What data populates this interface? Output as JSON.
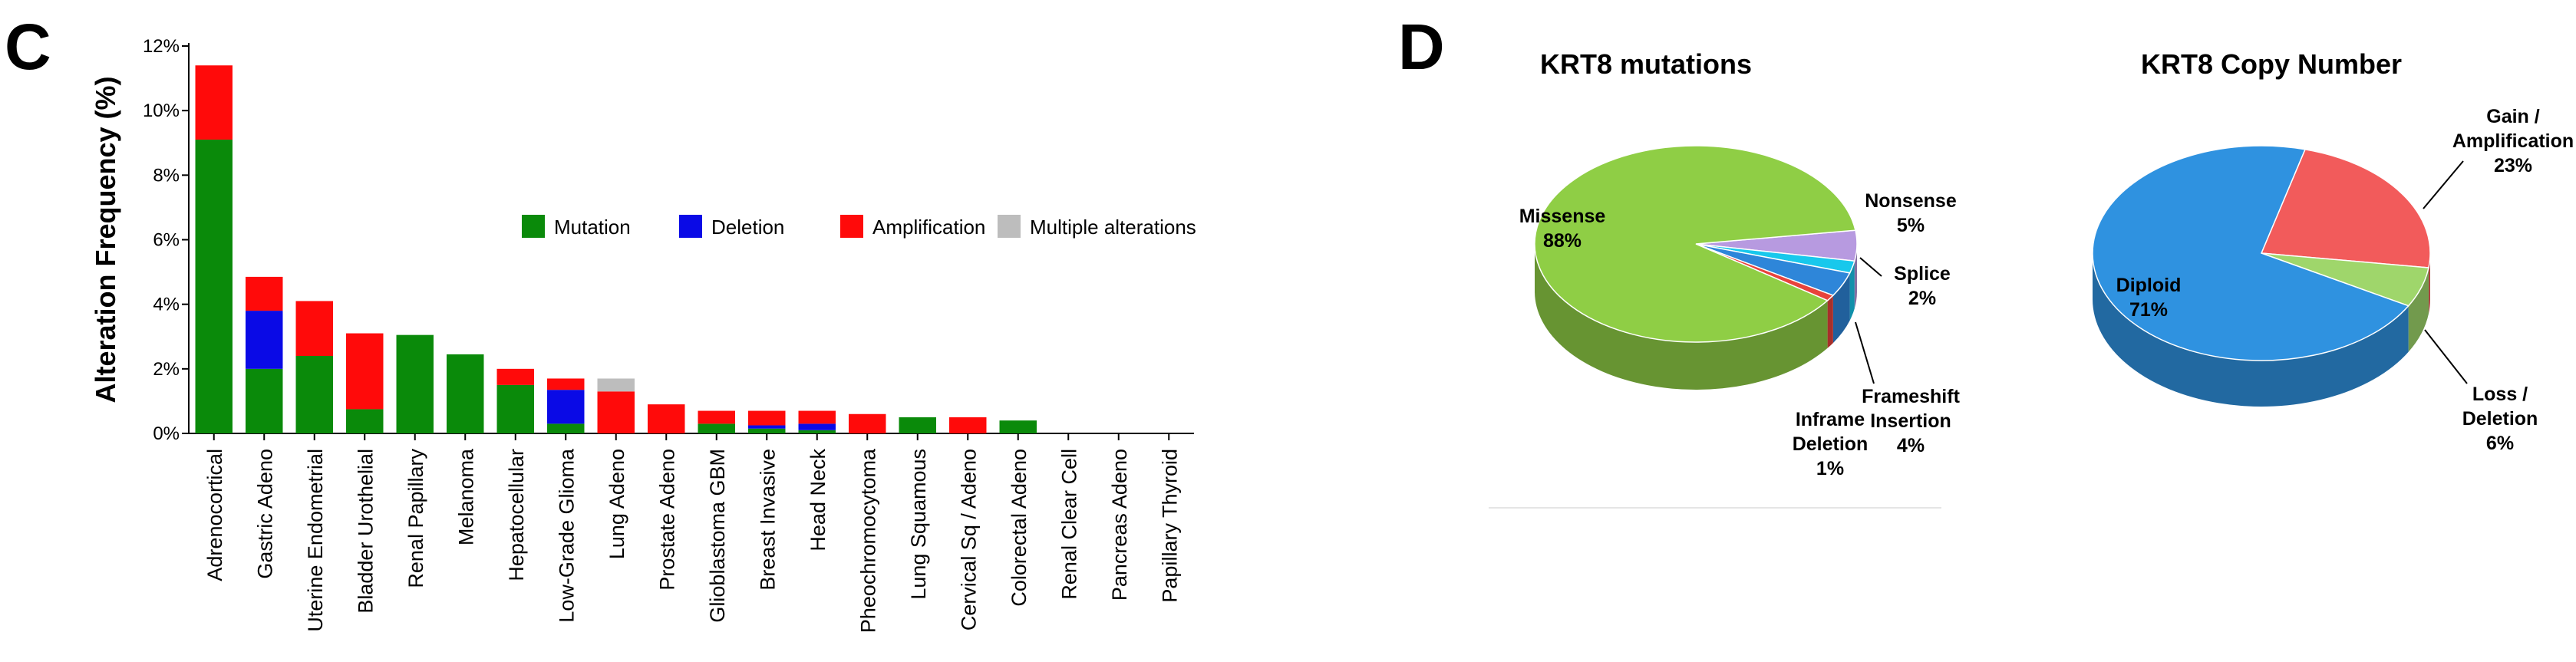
{
  "panels": {
    "left_letter": "C",
    "right_letter": "D"
  },
  "colors": {
    "mutation": "#0a8a0a",
    "deletion": "#0a0ae6",
    "amplification": "#ff0a0a",
    "multiple": "#bdbdbd",
    "missense": "#8fce45",
    "nonsense": "#b79ae0",
    "splice": "#18c8ec",
    "frameshift": "#2e86d9",
    "inframe": "#e8433c",
    "diploid": "#2f92e0",
    "gain": "#f25b5b",
    "loss": "#9fd66b"
  },
  "chart_data": [
    {
      "type": "bar",
      "stacked": true,
      "ylabel": "Alteration Frequency (%)",
      "xlabel": "",
      "ylim": [
        0,
        12
      ],
      "yticks": [
        "0%",
        "2%",
        "4%",
        "6%",
        "8%",
        "10%",
        "12%"
      ],
      "grid": false,
      "legend_position": "top-right",
      "categories": [
        "Adrenocortical",
        "Gastric Adeno",
        "Uterine Endometrial",
        "Bladder Urothelial",
        "Renal Papillary",
        "Melanoma",
        "Hepatocellular",
        "Low-Grade Glioma",
        "Lung Adeno",
        "Prostate Adeno",
        "Glioblastoma GBM",
        "Breast  Invasive",
        "Head Neck",
        "Pheochromocytoma",
        "Lung Squamous",
        "Cervical Sq / Adeno",
        "Colorectal Adeno",
        "Renal Clear Cell",
        "Pancreas Adeno",
        "Papillary Thyroid"
      ],
      "series": [
        {
          "name": "Mutation",
          "color_key": "mutation",
          "values": [
            9.1,
            2.0,
            2.4,
            0.75,
            3.05,
            2.45,
            1.5,
            0.3,
            0,
            0,
            0.3,
            0.15,
            0.1,
            0,
            0.5,
            0,
            0.4,
            0,
            0,
            0
          ]
        },
        {
          "name": "Deletion",
          "color_key": "deletion",
          "values": [
            0,
            1.8,
            0,
            0,
            0,
            0,
            0,
            1.05,
            0,
            0,
            0,
            0.1,
            0.2,
            0,
            0,
            0,
            0,
            0,
            0,
            0
          ]
        },
        {
          "name": "Amplification",
          "color_key": "amplification",
          "values": [
            2.3,
            1.05,
            1.7,
            2.35,
            0,
            0,
            0.5,
            0.35,
            1.3,
            0.9,
            0.4,
            0.45,
            0.4,
            0.6,
            0,
            0.5,
            0,
            0,
            0,
            0
          ]
        },
        {
          "name": "Multiple alterations",
          "color_key": "multiple",
          "values": [
            0,
            0,
            0,
            0,
            0,
            0,
            0,
            0,
            0.4,
            0,
            0,
            0,
            0,
            0,
            0,
            0,
            0,
            0,
            0,
            0
          ]
        }
      ]
    },
    {
      "type": "pie",
      "title": "KRT8 mutations",
      "slices": [
        {
          "key": "missense",
          "label": "Missense",
          "pct": "88%",
          "value": 88,
          "color_key": "missense"
        },
        {
          "key": "nonsense",
          "label": "Nonsense",
          "pct": "5%",
          "value": 5,
          "color_key": "nonsense"
        },
        {
          "key": "splice",
          "label": "Splice",
          "pct": "2%",
          "value": 2,
          "color_key": "splice"
        },
        {
          "key": "frameshift",
          "label": "Frameshift Insertion",
          "label_lines": [
            "Frameshift",
            "Insertion"
          ],
          "pct": "4%",
          "value": 4,
          "color_key": "frameshift"
        },
        {
          "key": "inframe",
          "label": "Inframe Deletion",
          "label_lines": [
            "Inframe",
            "Deletion"
          ],
          "pct": "1%",
          "value": 1,
          "color_key": "inframe"
        }
      ]
    },
    {
      "type": "pie",
      "title": "KRT8 Copy Number",
      "slices": [
        {
          "key": "diploid",
          "label": "Diploid",
          "pct": "71%",
          "value": 71,
          "color_key": "diploid"
        },
        {
          "key": "gain",
          "label": "Gain / Amplification",
          "label_lines": [
            "Gain /",
            "Amplification"
          ],
          "pct": "23%",
          "value": 23,
          "color_key": "gain"
        },
        {
          "key": "loss",
          "label": "Loss / Deletion",
          "label_lines": [
            "Loss /",
            "Deletion"
          ],
          "pct": "6%",
          "value": 6,
          "color_key": "loss"
        }
      ]
    }
  ]
}
